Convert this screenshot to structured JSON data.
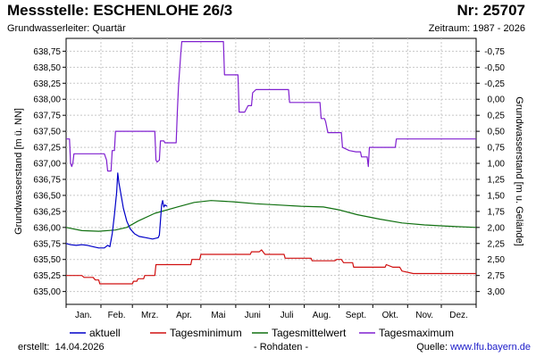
{
  "header": {
    "title": "Messstelle: ESCHENLOHE 26/3",
    "number": "Nr: 25707",
    "aquifer": "Grundwasserleiter: Quartär",
    "period": "Zeitraum: 1987 - 2026"
  },
  "footer": {
    "created_label": "erstellt:",
    "created_date": "14.04.2026",
    "raw_note": "- Rohdaten -",
    "source_label": "Quelle:",
    "source_url": "www.lfu.bayern.de"
  },
  "colors": {
    "aktuell": "#0000c8",
    "minimum": "#d01010",
    "mittel": "#107010",
    "maximum": "#8020d0",
    "grid": "#c8c8c8"
  },
  "chart_data": {
    "type": "line",
    "title": "Messstelle: ESCHENLOHE 26/3",
    "ylabel": "Grundwasserstand [m ü. NN]",
    "ylabel_right": "Grundwasserstand [m u. Gelände]",
    "ylim": [
      634.8,
      638.95
    ],
    "yticks": [
      "635,00",
      "635,25",
      "635,50",
      "635,75",
      "636,00",
      "636,25",
      "636,50",
      "636,75",
      "637,00",
      "637,25",
      "637,50",
      "637,75",
      "638,00",
      "638,25",
      "638,50",
      "638,75"
    ],
    "yticks_right": [
      "-0,75",
      "-0,50",
      "-0,25",
      "0,00",
      "0,25",
      "0,50",
      "0,75",
      "1,00",
      "1,25",
      "1,50",
      "1,75",
      "2,00",
      "2,25",
      "2,50",
      "2,75",
      "3,00"
    ],
    "right_axis_reference": 638.0,
    "x_unit": "day of year",
    "xlim": [
      1,
      366
    ],
    "month_labels": [
      "Jan.",
      "Feb.",
      "Mrz.",
      "Apr.",
      "Mai",
      "Juni",
      "Juli",
      "Aug.",
      "Sept.",
      "Okt.",
      "Nov.",
      "Dez."
    ],
    "grid": true,
    "legend_position": "bottom",
    "series": [
      {
        "name": "aktuell",
        "key": "aktuell",
        "points": [
          [
            1,
            635.75
          ],
          [
            5,
            635.73
          ],
          [
            10,
            635.72
          ],
          [
            15,
            635.73
          ],
          [
            20,
            635.72
          ],
          [
            25,
            635.7
          ],
          [
            30,
            635.68
          ],
          [
            35,
            635.68
          ],
          [
            38,
            635.72
          ],
          [
            40,
            635.7
          ],
          [
            42,
            635.9
          ],
          [
            44,
            636.2
          ],
          [
            46,
            636.55
          ],
          [
            47,
            636.85
          ],
          [
            48,
            636.7
          ],
          [
            50,
            636.5
          ],
          [
            52,
            636.3
          ],
          [
            55,
            636.1
          ],
          [
            58,
            635.98
          ],
          [
            62,
            635.9
          ],
          [
            66,
            635.86
          ],
          [
            72,
            635.84
          ],
          [
            78,
            635.82
          ],
          [
            83,
            635.84
          ],
          [
            84,
            635.88
          ],
          [
            85,
            636.1
          ],
          [
            86,
            636.35
          ],
          [
            87,
            636.42
          ],
          [
            88,
            636.32
          ],
          [
            89,
            636.35
          ],
          [
            91,
            636.33
          ]
        ]
      },
      {
        "name": "Tagesminimum",
        "key": "minimum",
        "points": [
          [
            1,
            635.25
          ],
          [
            15,
            635.25
          ],
          [
            17,
            635.22
          ],
          [
            25,
            635.22
          ],
          [
            27,
            635.18
          ],
          [
            30,
            635.18
          ],
          [
            31,
            635.12
          ],
          [
            60,
            635.12
          ],
          [
            61,
            635.16
          ],
          [
            64,
            635.16
          ],
          [
            65,
            635.2
          ],
          [
            70,
            635.2
          ],
          [
            71,
            635.25
          ],
          [
            80,
            635.25
          ],
          [
            81,
            635.42
          ],
          [
            112,
            635.42
          ],
          [
            113,
            635.5
          ],
          [
            120,
            635.5
          ],
          [
            121,
            635.58
          ],
          [
            165,
            635.58
          ],
          [
            166,
            635.62
          ],
          [
            173,
            635.62
          ],
          [
            175,
            635.65
          ],
          [
            178,
            635.58
          ],
          [
            195,
            635.58
          ],
          [
            196,
            635.52
          ],
          [
            219,
            635.52
          ],
          [
            220,
            635.48
          ],
          [
            240,
            635.48
          ],
          [
            242,
            635.5
          ],
          [
            246,
            635.5
          ],
          [
            248,
            635.45
          ],
          [
            256,
            635.45
          ],
          [
            257,
            635.38
          ],
          [
            285,
            635.38
          ],
          [
            286,
            635.42
          ],
          [
            292,
            635.38
          ],
          [
            298,
            635.38
          ],
          [
            300,
            635.32
          ],
          [
            310,
            635.28
          ],
          [
            366,
            635.28
          ]
        ]
      },
      {
        "name": "Tagesmittelwert",
        "key": "mittel",
        "points": [
          [
            1,
            636.0
          ],
          [
            15,
            635.95
          ],
          [
            30,
            635.94
          ],
          [
            45,
            635.96
          ],
          [
            55,
            636.0
          ],
          [
            65,
            636.1
          ],
          [
            80,
            636.22
          ],
          [
            100,
            636.32
          ],
          [
            115,
            636.39
          ],
          [
            130,
            636.42
          ],
          [
            150,
            636.4
          ],
          [
            170,
            636.37
          ],
          [
            190,
            636.35
          ],
          [
            210,
            636.33
          ],
          [
            230,
            636.32
          ],
          [
            245,
            636.27
          ],
          [
            260,
            636.2
          ],
          [
            280,
            636.13
          ],
          [
            300,
            636.07
          ],
          [
            320,
            636.04
          ],
          [
            340,
            636.02
          ],
          [
            366,
            636.0
          ]
        ]
      },
      {
        "name": "Tagesmaximum",
        "key": "maximum",
        "points": [
          [
            1,
            637.38
          ],
          [
            4,
            637.38
          ],
          [
            5,
            637.0
          ],
          [
            6,
            636.95
          ],
          [
            7,
            637.0
          ],
          [
            8,
            637.15
          ],
          [
            35,
            637.15
          ],
          [
            37,
            637.05
          ],
          [
            38,
            636.88
          ],
          [
            41,
            636.88
          ],
          [
            42,
            637.2
          ],
          [
            44,
            637.2
          ],
          [
            45,
            637.5
          ],
          [
            80,
            637.5
          ],
          [
            81,
            637.05
          ],
          [
            82,
            637.02
          ],
          [
            84,
            637.05
          ],
          [
            85,
            637.35
          ],
          [
            88,
            637.35
          ],
          [
            89,
            637.32
          ],
          [
            99,
            637.32
          ],
          [
            100,
            637.8
          ],
          [
            101,
            638.2
          ],
          [
            103,
            638.7
          ],
          [
            104,
            638.9
          ],
          [
            141,
            638.9
          ],
          [
            142,
            638.38
          ],
          [
            154,
            638.38
          ],
          [
            155,
            637.8
          ],
          [
            160,
            637.8
          ],
          [
            163,
            637.9
          ],
          [
            166,
            637.9
          ],
          [
            167,
            638.1
          ],
          [
            170,
            638.15
          ],
          [
            199,
            638.15
          ],
          [
            200,
            637.95
          ],
          [
            227,
            637.95
          ],
          [
            228,
            637.7
          ],
          [
            231,
            637.7
          ],
          [
            232,
            637.65
          ],
          [
            234,
            637.48
          ],
          [
            246,
            637.48
          ],
          [
            247,
            637.25
          ],
          [
            253,
            637.2
          ],
          [
            259,
            637.18
          ],
          [
            263,
            637.18
          ],
          [
            264,
            637.1
          ],
          [
            269,
            637.1
          ],
          [
            270,
            636.95
          ],
          [
            271,
            637.25
          ],
          [
            294,
            637.25
          ],
          [
            295,
            637.38
          ],
          [
            366,
            637.38
          ]
        ]
      }
    ]
  }
}
